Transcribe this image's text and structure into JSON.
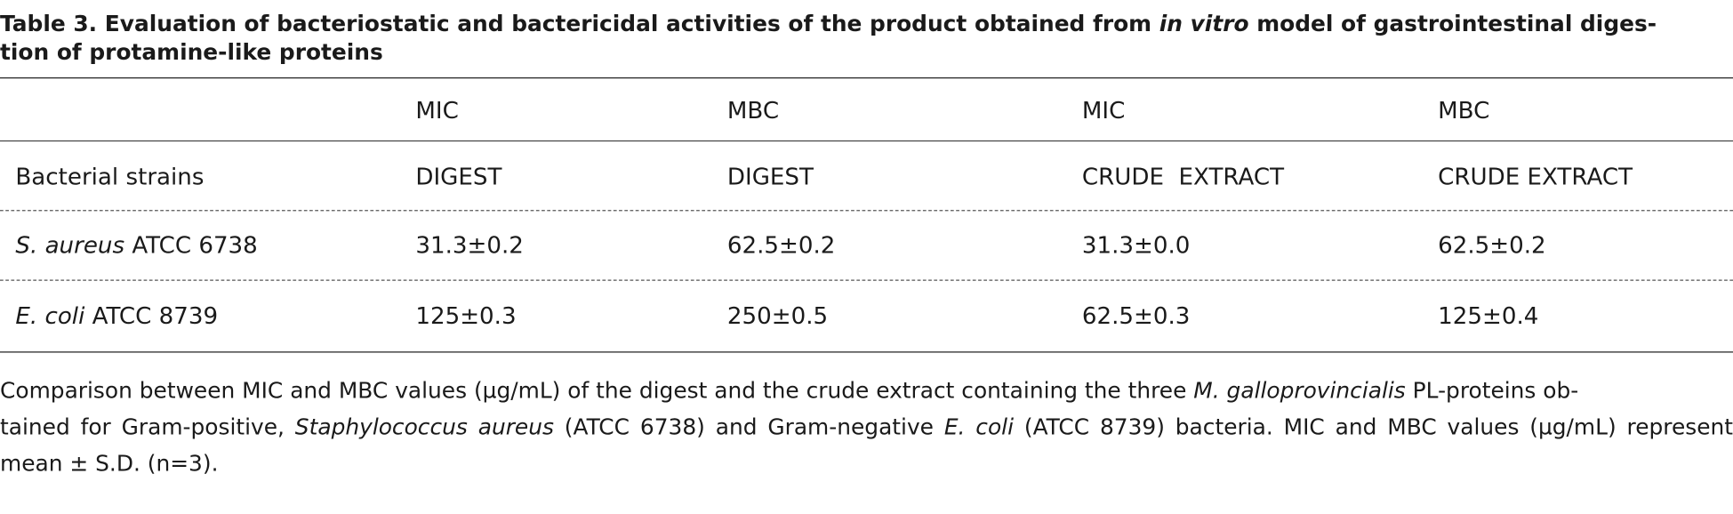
{
  "title": [
    "Table 3. Evaluation of bacteriostatic and bactericidal activities of the product obtained from ",
    "in vitro",
    " model of gastrointestinal diges-",
    "tion of protamine-like proteins"
  ],
  "table": {
    "header": [
      [
        "MIC",
        "MBC",
        "MIC",
        "MBC"
      ],
      [
        "Bacterial strains",
        "DIGEST",
        "DIGEST",
        "CRUDE  EXTRACT",
        "CRUDE EXTRACT"
      ]
    ],
    "rows": [
      {
        "strain": [
          "S. aureus",
          " ATCC 6738"
        ],
        "values": [
          "31.3±0.2",
          "62.5±0.2",
          "31.3±0.0",
          "62.5±0.2"
        ]
      },
      {
        "strain": [
          "E. coli",
          " ATCC 8739"
        ],
        "values": [
          "125±0.3",
          "250±0.5",
          "62.5±0.3",
          "125±0.4"
        ]
      }
    ]
  },
  "caption": [
    "Comparison between MIC and MBC values (µg/mL) of the digest and the crude extract containing the three ",
    "M. galloprovincialis",
    " PL-proteins ob-",
    "tained for Gram-positive, ",
    "Staphylococcus aureus",
    " (ATCC 6738) and Gram-negative ",
    "E. coli",
    " (ATCC 8739) bacteria. MIC and MBC values (µg/mL) represent mean ± S.D. (n=3)."
  ]
}
